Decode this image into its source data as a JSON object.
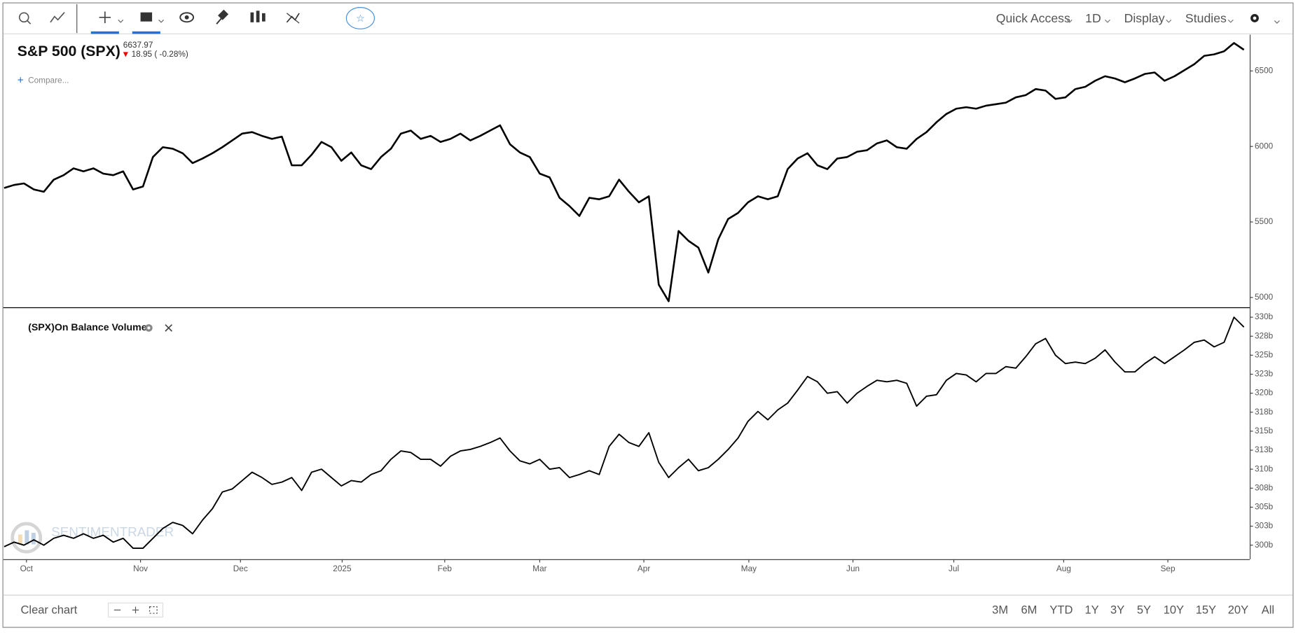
{
  "toolbar": {
    "menus": [
      "Quick Access",
      "1D",
      "Display",
      "Studies"
    ]
  },
  "chart_data": [
    {
      "type": "line",
      "title": "S&P 500 (SPX)",
      "last": 6637.97,
      "change": "18.95 ( -0.28%)",
      "compare": "Compare...",
      "series": [
        {
          "color": "#000000",
          "values": [
            5725,
            5745,
            5755,
            5715,
            5700,
            5780,
            5810,
            5855,
            5835,
            5855,
            5820,
            5810,
            5835,
            5715,
            5735,
            5930,
            5995,
            5985,
            5955,
            5890,
            5920,
            5955,
            5995,
            6040,
            6085,
            6095,
            6070,
            6050,
            6065,
            5875,
            5875,
            5945,
            6030,
            5995,
            5905,
            5960,
            5875,
            5850,
            5930,
            5985,
            6085,
            6105,
            6050,
            6070,
            6030,
            6050,
            6085,
            6040,
            6070,
            6105,
            6140,
            6015,
            5960,
            5930,
            5820,
            5795,
            5660,
            5605,
            5540,
            5660,
            5650,
            5670,
            5780,
            5700,
            5630,
            5670,
            5085,
            4975,
            5440,
            5375,
            5330,
            5165,
            5385,
            5520,
            5560,
            5630,
            5670,
            5650,
            5670,
            5850,
            5920,
            5955,
            5875,
            5850,
            5920,
            5930,
            5965,
            5975,
            6020,
            6040,
            5995,
            5985,
            6050,
            6095,
            6160,
            6215,
            6250,
            6260,
            6250,
            6270,
            6280,
            6290,
            6325,
            6340,
            6380,
            6370,
            6315,
            6325,
            6380,
            6395,
            6435,
            6465,
            6450,
            6425,
            6450,
            6480,
            6490,
            6435,
            6465,
            6505,
            6545,
            6600,
            6610,
            6630,
            6685,
            6640
          ]
        }
      ],
      "xlim": [
        0,
        125.5
      ],
      "ylim": [
        4935,
        6740
      ],
      "yticks": [
        5000,
        5500,
        6000,
        6500
      ]
    },
    {
      "type": "line",
      "title": "(SPX)On Balance Volume",
      "series": [
        {
          "color": "#000000",
          "values": [
            299.8,
            300.4,
            300.0,
            300.7,
            300.0,
            300.9,
            301.3,
            300.9,
            301.5,
            300.9,
            301.3,
            300.4,
            300.9,
            299.6,
            299.6,
            300.9,
            302.2,
            303.0,
            302.6,
            301.5,
            303.3,
            304.8,
            307.0,
            307.4,
            308.5,
            309.6,
            308.9,
            308.0,
            308.3,
            308.9,
            307.2,
            309.6,
            310.0,
            308.9,
            307.8,
            308.5,
            308.3,
            309.3,
            309.8,
            311.3,
            312.4,
            312.2,
            311.3,
            311.3,
            310.4,
            311.7,
            312.4,
            312.6,
            313.0,
            313.5,
            314.1,
            312.4,
            311.1,
            310.7,
            311.3,
            310.0,
            310.2,
            308.9,
            309.3,
            309.8,
            309.3,
            313.0,
            314.6,
            313.5,
            313.0,
            314.8,
            310.9,
            308.9,
            310.2,
            311.3,
            309.8,
            310.2,
            311.3,
            312.6,
            314.1,
            316.3,
            317.6,
            316.5,
            317.8,
            318.7,
            320.4,
            322.2,
            321.5,
            320.0,
            320.2,
            318.7,
            320.0,
            320.9,
            321.7,
            321.5,
            321.7,
            321.3,
            318.3,
            319.6,
            319.8,
            321.7,
            322.6,
            322.4,
            321.5,
            322.6,
            322.6,
            323.5,
            323.3,
            324.8,
            326.5,
            327.2,
            325.0,
            323.9,
            324.1,
            323.9,
            324.6,
            325.7,
            324.1,
            322.8,
            322.8,
            323.9,
            324.8,
            323.9,
            324.8,
            325.7,
            326.7,
            327.0,
            326.1,
            326.7,
            330.0,
            328.7
          ]
        }
      ],
      "xlim": [
        0,
        125.5
      ],
      "ylim": [
        298.15,
        331.2
      ],
      "yticks": [
        {
          "value": 330,
          "label": "330b"
        },
        {
          "value": 327.5,
          "label": "328b"
        },
        {
          "value": 325,
          "label": "325b"
        },
        {
          "value": 322.5,
          "label": "323b"
        },
        {
          "value": 320,
          "label": "320b"
        },
        {
          "value": 317.5,
          "label": "318b"
        },
        {
          "value": 315,
          "label": "315b"
        },
        {
          "value": 312.5,
          "label": "313b"
        },
        {
          "value": 310,
          "label": "310b"
        },
        {
          "value": 307.5,
          "label": "308b"
        },
        {
          "value": 305,
          "label": "305b"
        },
        {
          "value": 302.5,
          "label": "303b"
        },
        {
          "value": 300,
          "label": "300b"
        }
      ],
      "xticks": [
        {
          "value": 2.25,
          "label": "Oct"
        },
        {
          "value": 13.75,
          "label": "Nov"
        },
        {
          "value": 23.83,
          "label": "Dec"
        },
        {
          "value": 34.08,
          "label": "2025"
        },
        {
          "value": 44.42,
          "label": "Feb"
        },
        {
          "value": 54,
          "label": "Mar"
        },
        {
          "value": 64.5,
          "label": "Apr"
        },
        {
          "value": 75.08,
          "label": "May"
        },
        {
          "value": 85.58,
          "label": "Jun"
        },
        {
          "value": 95.75,
          "label": "Jul"
        },
        {
          "value": 106.83,
          "label": "Aug"
        },
        {
          "value": 117.33,
          "label": "Sep"
        }
      ]
    }
  ],
  "watermark": {
    "brand": "SENTIMENTRADER"
  },
  "footer": {
    "clear": "Clear chart",
    "ranges": [
      "3M",
      "6M",
      "YTD",
      "1Y",
      "3Y",
      "5Y",
      "10Y",
      "15Y",
      "20Y",
      "All"
    ]
  }
}
